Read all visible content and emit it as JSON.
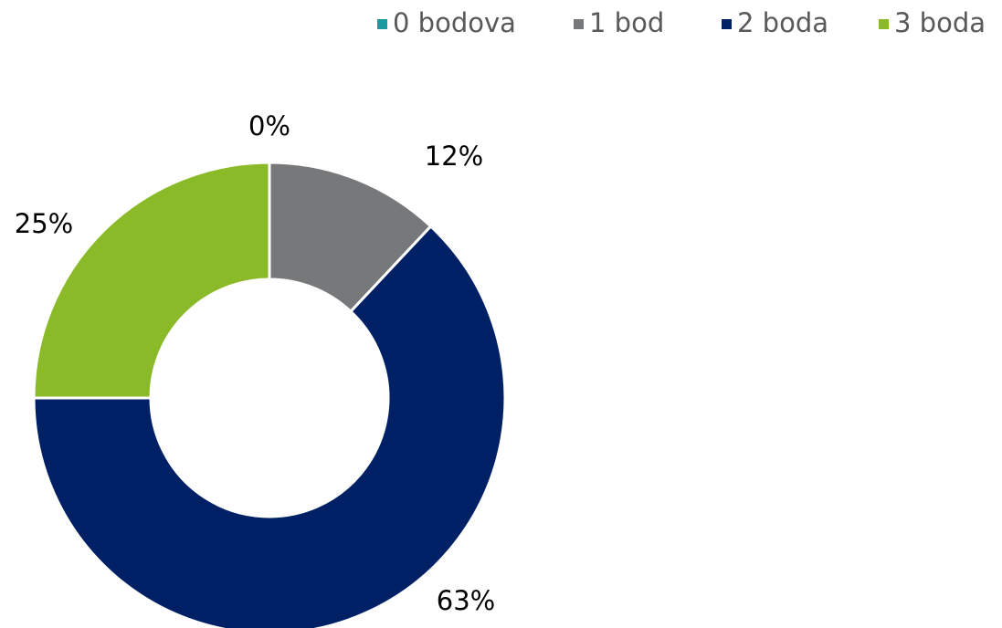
{
  "chart_data": {
    "type": "donut",
    "categories": [
      "0 bodova",
      "1 bod",
      "2 boda",
      "3 boda"
    ],
    "values": [
      0,
      12,
      63,
      25
    ],
    "value_labels": [
      "0%",
      "12%",
      "63%",
      "25%"
    ],
    "colors": [
      "#1a9ba0",
      "#76787a",
      "#002066",
      "#8aba28"
    ],
    "legend": "top-right"
  }
}
